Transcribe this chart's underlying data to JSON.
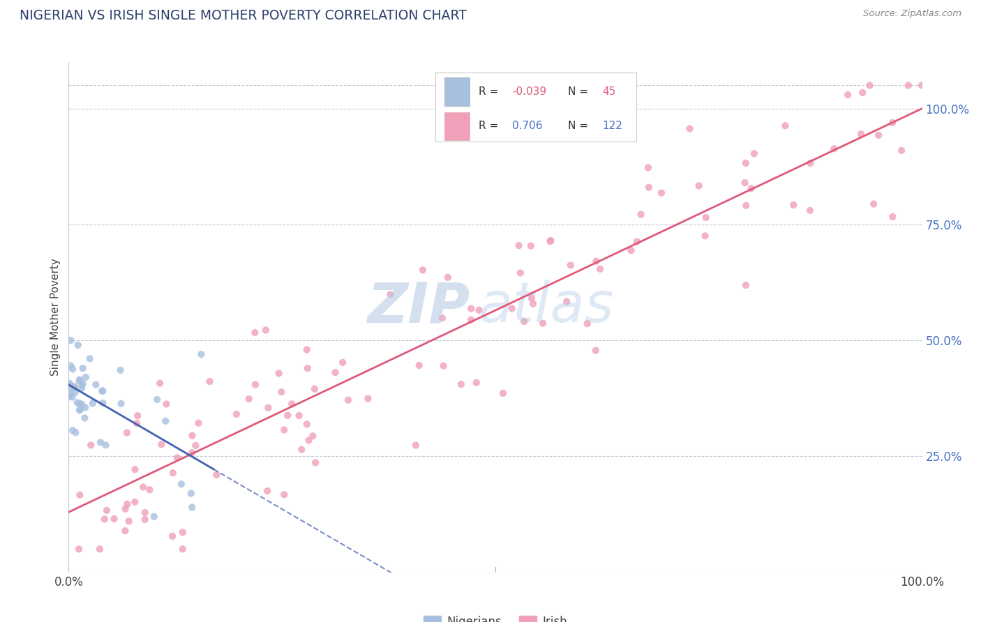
{
  "title": "NIGERIAN VS IRISH SINGLE MOTHER POVERTY CORRELATION CHART",
  "source": "Source: ZipAtlas.com",
  "ylabel": "Single Mother Poverty",
  "legend_nigerians_R": "-0.039",
  "legend_nigerians_N": "45",
  "legend_irish_R": "0.706",
  "legend_irish_N": "122",
  "nigerian_color": "#a8c0e0",
  "irish_color": "#f0a0b8",
  "nigerian_line_color": "#4060b0",
  "irish_line_color": "#e05878",
  "background_color": "#ffffff",
  "grid_color": "#c0c8d8",
  "watermark_color": "#c8ddf0",
  "title_color": "#2c3e6b",
  "source_color": "#888888",
  "ytick_color": "#4472c4",
  "r_value_color_nig": "#e05878",
  "r_value_color_iri": "#4472c4",
  "n_value_color": "#e05878",
  "n_value_color_iri": "#4472c4"
}
